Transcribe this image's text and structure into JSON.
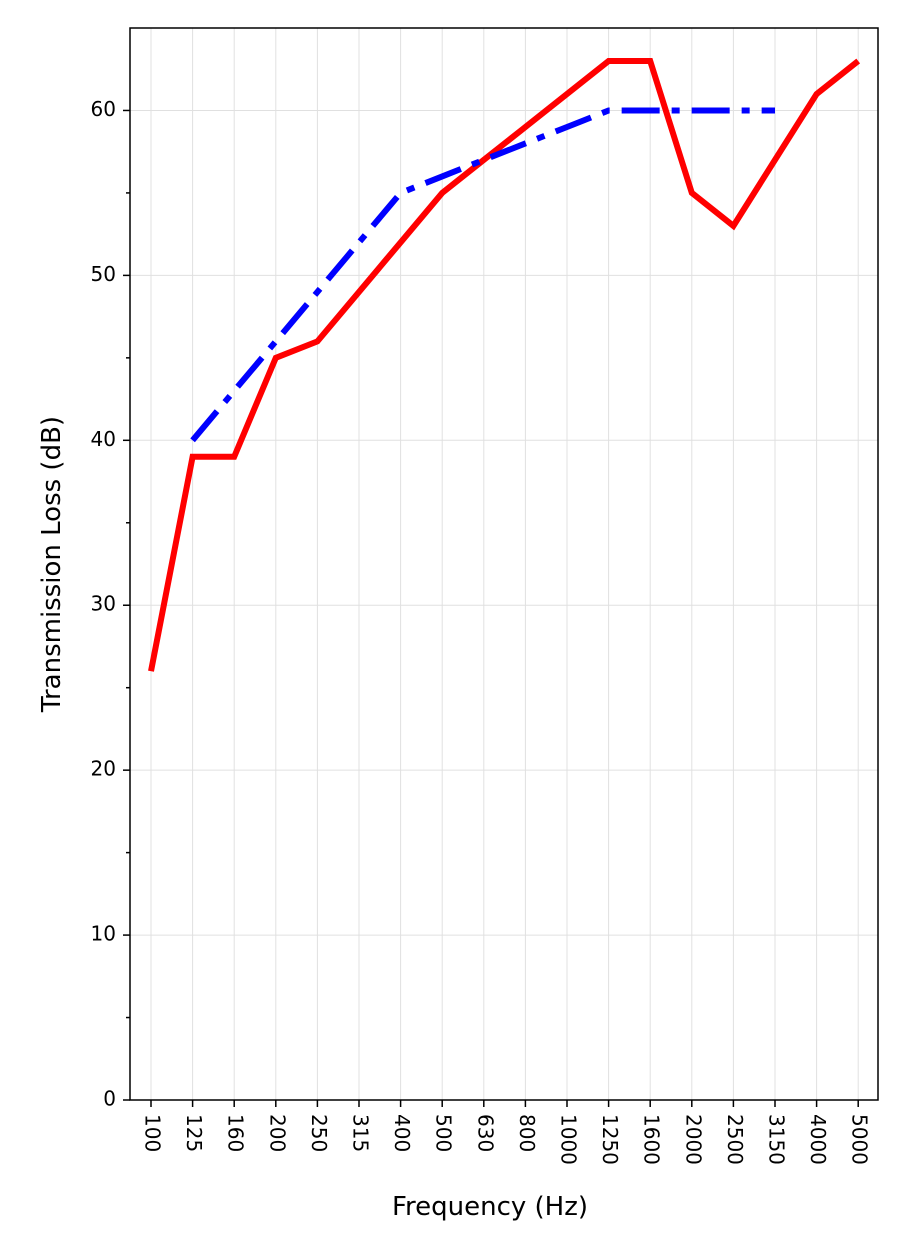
{
  "chart_data": {
    "type": "line",
    "xlabel": "Frequency (Hz)",
    "ylabel": "Transmission Loss (dB)",
    "categories": [
      "100",
      "125",
      "160",
      "200",
      "250",
      "315",
      "400",
      "500",
      "630",
      "800",
      "1000",
      "1250",
      "1600",
      "2000",
      "2500",
      "3150",
      "4000",
      "5000"
    ],
    "ylim": [
      0,
      65
    ],
    "yticks": [
      0,
      10,
      20,
      30,
      40,
      50,
      60
    ],
    "grid": true,
    "series": [
      {
        "color": "#ff0000",
        "style": "solid",
        "values": [
          26,
          39,
          39,
          45,
          46,
          49,
          52,
          55,
          57,
          59,
          61,
          63,
          63,
          55,
          53,
          57,
          61,
          63
        ]
      },
      {
        "color": "#0000ff",
        "style": "dashdot",
        "values": [
          null,
          40,
          43,
          46,
          49,
          52,
          55,
          56,
          57,
          58,
          59,
          60,
          60,
          60,
          60,
          60,
          null,
          null
        ]
      }
    ]
  }
}
